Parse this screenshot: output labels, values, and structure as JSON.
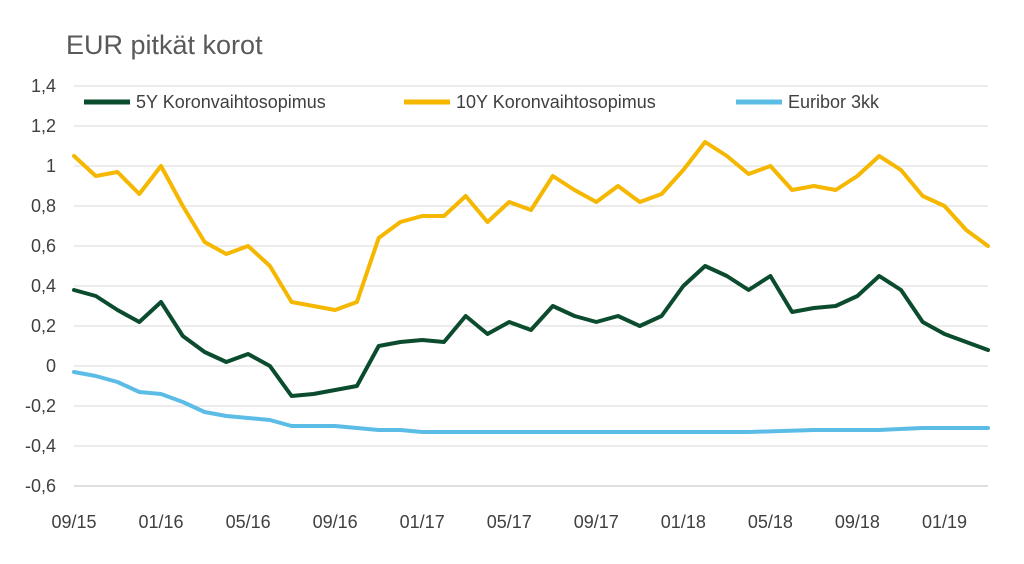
{
  "chart_data": {
    "type": "line",
    "title": "EUR pitkät korot",
    "xlabel": "",
    "ylabel": "",
    "x_ticks": [
      "09/15",
      "01/16",
      "05/16",
      "09/16",
      "01/17",
      "05/17",
      "09/17",
      "01/18",
      "05/18",
      "09/18",
      "01/19"
    ],
    "y_ticks": [
      "1,4",
      "1,2",
      "1",
      "0,8",
      "0,6",
      "0,4",
      "0,2",
      "0",
      "-0,2",
      "-0,4",
      "-0,6"
    ],
    "ylim": [
      -0.6,
      1.4
    ],
    "xlim": [
      "2015-09",
      "2019-03"
    ],
    "grid": true,
    "legend_position": "top",
    "series": [
      {
        "name": "5Y Koronvaihtosopimus",
        "color": "#0b4b2e",
        "points": [
          [
            "2015-09",
            0.38
          ],
          [
            "2015-10",
            0.35
          ],
          [
            "2015-11",
            0.28
          ],
          [
            "2015-12",
            0.22
          ],
          [
            "2016-01",
            0.32
          ],
          [
            "2016-02",
            0.15
          ],
          [
            "2016-03",
            0.07
          ],
          [
            "2016-04",
            0.02
          ],
          [
            "2016-05",
            0.06
          ],
          [
            "2016-06",
            0.0
          ],
          [
            "2016-07",
            -0.15
          ],
          [
            "2016-08",
            -0.14
          ],
          [
            "2016-09",
            -0.12
          ],
          [
            "2016-10",
            -0.1
          ],
          [
            "2016-11",
            0.1
          ],
          [
            "2016-12",
            0.12
          ],
          [
            "2017-01",
            0.13
          ],
          [
            "2017-02",
            0.12
          ],
          [
            "2017-03",
            0.25
          ],
          [
            "2017-04",
            0.16
          ],
          [
            "2017-05",
            0.22
          ],
          [
            "2017-06",
            0.18
          ],
          [
            "2017-07",
            0.3
          ],
          [
            "2017-08",
            0.25
          ],
          [
            "2017-09",
            0.22
          ],
          [
            "2017-10",
            0.25
          ],
          [
            "2017-11",
            0.2
          ],
          [
            "2017-12",
            0.25
          ],
          [
            "2018-01",
            0.4
          ],
          [
            "2018-02",
            0.5
          ],
          [
            "2018-03",
            0.45
          ],
          [
            "2018-04",
            0.38
          ],
          [
            "2018-05",
            0.45
          ],
          [
            "2018-06",
            0.27
          ],
          [
            "2018-07",
            0.29
          ],
          [
            "2018-08",
            0.3
          ],
          [
            "2018-09",
            0.35
          ],
          [
            "2018-10",
            0.45
          ],
          [
            "2018-11",
            0.38
          ],
          [
            "2018-12",
            0.22
          ],
          [
            "2019-01",
            0.16
          ],
          [
            "2019-02",
            0.12
          ],
          [
            "2019-03",
            0.08
          ]
        ]
      },
      {
        "name": "10Y Koronvaihtosopimus",
        "color": "#f5b700",
        "points": [
          [
            "2015-09",
            1.05
          ],
          [
            "2015-10",
            0.95
          ],
          [
            "2015-11",
            0.97
          ],
          [
            "2015-12",
            0.86
          ],
          [
            "2016-01",
            1.0
          ],
          [
            "2016-02",
            0.8
          ],
          [
            "2016-03",
            0.62
          ],
          [
            "2016-04",
            0.56
          ],
          [
            "2016-05",
            0.6
          ],
          [
            "2016-06",
            0.5
          ],
          [
            "2016-07",
            0.32
          ],
          [
            "2016-08",
            0.3
          ],
          [
            "2016-09",
            0.28
          ],
          [
            "2016-10",
            0.32
          ],
          [
            "2016-11",
            0.64
          ],
          [
            "2016-12",
            0.72
          ],
          [
            "2017-01",
            0.75
          ],
          [
            "2017-02",
            0.75
          ],
          [
            "2017-03",
            0.85
          ],
          [
            "2017-04",
            0.72
          ],
          [
            "2017-05",
            0.82
          ],
          [
            "2017-06",
            0.78
          ],
          [
            "2017-07",
            0.95
          ],
          [
            "2017-08",
            0.88
          ],
          [
            "2017-09",
            0.82
          ],
          [
            "2017-10",
            0.9
          ],
          [
            "2017-11",
            0.82
          ],
          [
            "2017-12",
            0.86
          ],
          [
            "2018-01",
            0.98
          ],
          [
            "2018-02",
            1.12
          ],
          [
            "2018-03",
            1.05
          ],
          [
            "2018-04",
            0.96
          ],
          [
            "2018-05",
            1.0
          ],
          [
            "2018-06",
            0.88
          ],
          [
            "2018-07",
            0.9
          ],
          [
            "2018-08",
            0.88
          ],
          [
            "2018-09",
            0.95
          ],
          [
            "2018-10",
            1.05
          ],
          [
            "2018-11",
            0.98
          ],
          [
            "2018-12",
            0.85
          ],
          [
            "2019-01",
            0.8
          ],
          [
            "2019-02",
            0.68
          ],
          [
            "2019-03",
            0.6
          ]
        ]
      },
      {
        "name": "Euribor 3kk",
        "color": "#5bbde6",
        "points": [
          [
            "2015-09",
            -0.03
          ],
          [
            "2015-10",
            -0.05
          ],
          [
            "2015-11",
            -0.08
          ],
          [
            "2015-12",
            -0.13
          ],
          [
            "2016-01",
            -0.14
          ],
          [
            "2016-02",
            -0.18
          ],
          [
            "2016-03",
            -0.23
          ],
          [
            "2016-04",
            -0.25
          ],
          [
            "2016-05",
            -0.26
          ],
          [
            "2016-06",
            -0.27
          ],
          [
            "2016-07",
            -0.3
          ],
          [
            "2016-08",
            -0.3
          ],
          [
            "2016-09",
            -0.3
          ],
          [
            "2016-10",
            -0.31
          ],
          [
            "2016-11",
            -0.32
          ],
          [
            "2016-12",
            -0.32
          ],
          [
            "2017-01",
            -0.33
          ],
          [
            "2017-04",
            -0.33
          ],
          [
            "2017-07",
            -0.33
          ],
          [
            "2017-10",
            -0.33
          ],
          [
            "2018-01",
            -0.33
          ],
          [
            "2018-04",
            -0.33
          ],
          [
            "2018-07",
            -0.32
          ],
          [
            "2018-10",
            -0.32
          ],
          [
            "2018-12",
            -0.31
          ],
          [
            "2019-03",
            -0.31
          ]
        ]
      }
    ]
  }
}
